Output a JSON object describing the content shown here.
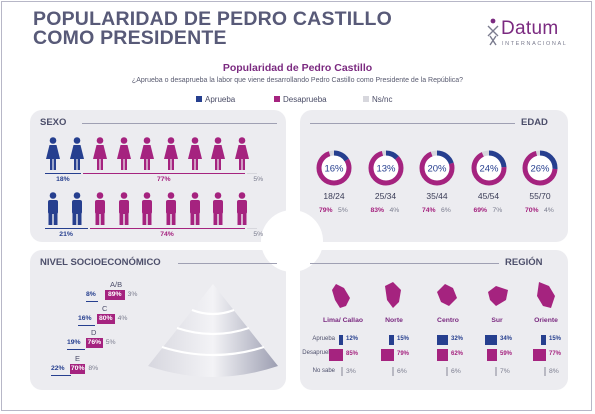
{
  "header": {
    "title_line1": "POPULARIDAD DE PEDRO CASTILLO",
    "title_line2": "COMO PRESIDENTE",
    "logo_word": "Datum",
    "logo_sub": "INTERNACIONAL"
  },
  "subtitle": "Popularidad de Pedro Castillo",
  "question": "¿Aprueba o desaprueba la labor que viene desarrollando Pedro Castillo como Presidente de la República?",
  "legend": [
    "Aprueba",
    "Desaprueba",
    "Ns/nc"
  ],
  "colors": {
    "aprueba": "#263f8f",
    "desaprueba": "#a5237f",
    "nsnc": "#d7d7dd"
  },
  "panels": {
    "sexo": "SEXO",
    "edad": "EDAD",
    "nse": "NIVEL SOCIOECONÓMICO",
    "region": "REGIÓN"
  },
  "chart_data": [
    {
      "type": "bar",
      "panel": "SEXO",
      "categories": [
        "Mujeres",
        "Hombres"
      ],
      "series": [
        {
          "name": "Aprueba",
          "values": [
            18,
            21
          ]
        },
        {
          "name": "Desaprueba",
          "values": [
            77,
            74
          ]
        },
        {
          "name": "Ns/nc",
          "values": [
            5,
            5
          ]
        }
      ],
      "labels": {
        "aprueba": [
          "18%",
          "21%"
        ],
        "desaprueba": [
          "77%",
          "74%"
        ],
        "nsnc": [
          "5%",
          "5%"
        ]
      }
    },
    {
      "type": "pie",
      "panel": "EDAD",
      "categories": [
        "18/24",
        "25/34",
        "35/44",
        "45/54",
        "55/70"
      ],
      "series": [
        {
          "name": "Aprueba",
          "values": [
            16,
            13,
            20,
            24,
            26
          ]
        },
        {
          "name": "Desaprueba",
          "values": [
            79,
            83,
            74,
            69,
            70
          ]
        },
        {
          "name": "Ns/nc",
          "values": [
            5,
            4,
            6,
            7,
            4
          ]
        }
      ],
      "labels": {
        "aprueba": [
          "16%",
          "13%",
          "20%",
          "24%",
          "26%"
        ],
        "desaprueba": [
          "79%",
          "83%",
          "74%",
          "69%",
          "70%"
        ],
        "nsnc": [
          "5%",
          "4%",
          "6%",
          "7%",
          "4%"
        ]
      }
    },
    {
      "type": "bar",
      "panel": "NIVEL SOCIOECONÓMICO",
      "categories": [
        "A/B",
        "C",
        "D",
        "E"
      ],
      "series": [
        {
          "name": "Aprueba",
          "values": [
            8,
            16,
            19,
            22
          ]
        },
        {
          "name": "Desaprueba",
          "values": [
            89,
            80,
            76,
            70
          ]
        },
        {
          "name": "Ns/nc",
          "values": [
            3,
            4,
            5,
            8
          ]
        }
      ],
      "labels": {
        "aprueba": [
          "8%",
          "16%",
          "19%",
          "22%"
        ],
        "desaprueba": [
          "89%",
          "80%",
          "76%",
          "70%"
        ],
        "nsnc": [
          "3%",
          "4%",
          "5%",
          "8%"
        ]
      }
    },
    {
      "type": "bar",
      "panel": "REGIÓN",
      "categories": [
        "Lima/ Callao",
        "Norte",
        "Centro",
        "Sur",
        "Oriente"
      ],
      "row_labels": [
        "Aprueba",
        "Desaprueba",
        "No sabe"
      ],
      "series": [
        {
          "name": "Aprueba",
          "values": [
            12,
            15,
            32,
            34,
            15
          ]
        },
        {
          "name": "Desaprueba",
          "values": [
            85,
            79,
            62,
            59,
            77
          ]
        },
        {
          "name": "No sabe",
          "values": [
            3,
            6,
            6,
            7,
            8
          ]
        }
      ],
      "labels": {
        "aprueba": [
          "12%",
          "15%",
          "32%",
          "34%",
          "15%"
        ],
        "desaprueba": [
          "85%",
          "79%",
          "62%",
          "59%",
          "77%"
        ],
        "nsnc": [
          "3%",
          "6%",
          "6%",
          "7%",
          "8%"
        ]
      }
    }
  ]
}
